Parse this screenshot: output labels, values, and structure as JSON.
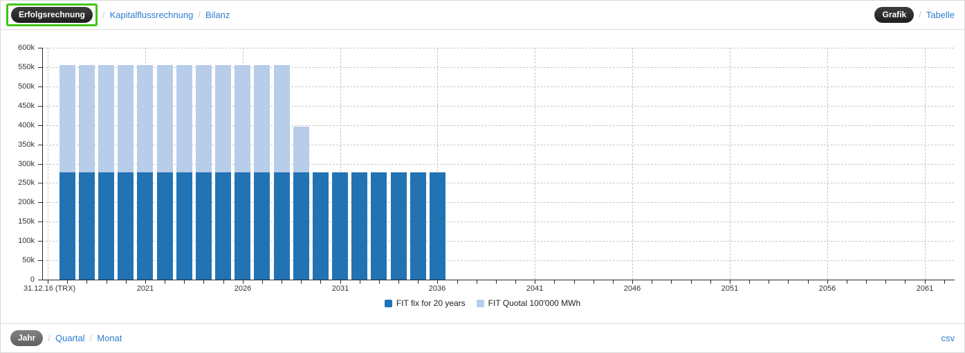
{
  "header": {
    "report_tabs": [
      {
        "label": "Erfolgsrechnung",
        "active": true,
        "highlighted": true
      },
      {
        "label": "Kapitalflussrechnung",
        "active": false
      },
      {
        "label": "Bilanz",
        "active": false
      }
    ],
    "view_tabs": [
      {
        "label": "Grafik",
        "active": true
      },
      {
        "label": "Tabelle",
        "active": false
      }
    ],
    "separator": "/"
  },
  "footer": {
    "period_tabs": [
      {
        "label": "Jahr",
        "active": true
      },
      {
        "label": "Quartal",
        "active": false
      },
      {
        "label": "Monat",
        "active": false
      }
    ],
    "separator": "/",
    "export_link": "csv"
  },
  "annotation": {
    "highlight_color": "#3fc312",
    "highlighted_element": "Erfolgsrechnung"
  },
  "chart_data": {
    "type": "bar",
    "stacked": true,
    "grid": "dashed",
    "legend_position": "bottom-center",
    "title": "",
    "categories": [
      2017,
      2018,
      2019,
      2020,
      2021,
      2022,
      2023,
      2024,
      2025,
      2026,
      2027,
      2028,
      2029,
      2030,
      2031,
      2032,
      2033,
      2034,
      2035,
      2036
    ],
    "series": [
      {
        "name": "FIT fix for 20 years",
        "color": "#2173b4",
        "values": [
          278000,
          278000,
          278000,
          278000,
          278000,
          278000,
          278000,
          278000,
          278000,
          278000,
          278000,
          278000,
          278000,
          278000,
          278000,
          278000,
          278000,
          278000,
          278000,
          278000
        ]
      },
      {
        "name": "FIT Quotal 100'000 MWh",
        "color": "#b7cde9",
        "values": [
          278000,
          278000,
          278000,
          278000,
          278000,
          278000,
          278000,
          278000,
          278000,
          278000,
          278000,
          278000,
          117000,
          0,
          0,
          0,
          0,
          0,
          0,
          0
        ]
      }
    ],
    "y_axis": {
      "min": 0,
      "max": 600000,
      "tick_step": 50000,
      "tick_labels": [
        "0",
        "50k",
        "100k",
        "150k",
        "200k",
        "250k",
        "300k",
        "350k",
        "400k",
        "450k",
        "500k",
        "550k",
        "600k"
      ]
    },
    "x_axis": {
      "origin_label": "31.12.16 (TRX)",
      "first_year": 2016,
      "last_year": 2062,
      "tick_interval_years": 1,
      "labeled_ticks": [
        "2021",
        "2026",
        "2031",
        "2036",
        "2041",
        "2046",
        "2051",
        "2056",
        "2061"
      ]
    }
  }
}
